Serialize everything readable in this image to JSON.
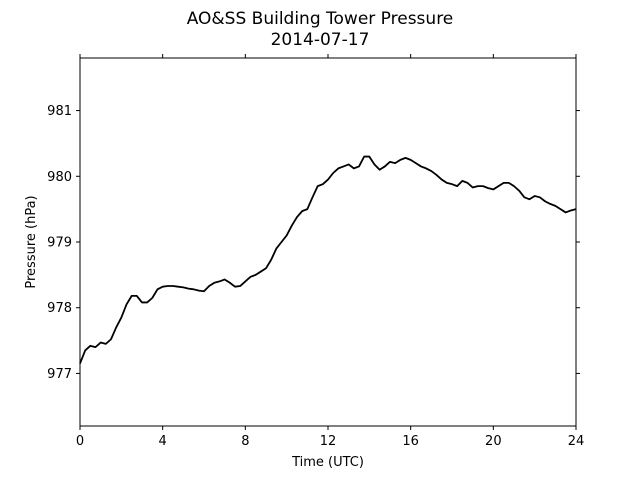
{
  "chart_data": {
    "type": "line",
    "title": "AO&SS Building Tower Pressure",
    "subtitle": "2014-07-17",
    "xlabel": "Time (UTC)",
    "ylabel": "Pressure (hPa)",
    "xlim": [
      0,
      24
    ],
    "ylim": [
      976.2,
      981.8
    ],
    "xticks": [
      0,
      4,
      8,
      12,
      16,
      20,
      24
    ],
    "yticks": [
      977,
      978,
      979,
      980,
      981
    ],
    "grid": false,
    "line_color": "#000000",
    "series": [
      {
        "x": [
          0.0,
          0.25,
          0.5,
          0.75,
          1.0,
          1.25,
          1.5,
          1.75,
          2.0,
          2.25,
          2.5,
          2.75,
          3.0,
          3.25,
          3.5,
          3.75,
          4.0,
          4.25,
          4.5,
          4.75,
          5.0,
          5.25,
          5.5,
          5.75,
          6.0,
          6.25,
          6.5,
          6.75,
          7.0,
          7.25,
          7.5,
          7.75,
          8.0,
          8.25,
          8.5,
          8.75,
          9.0,
          9.25,
          9.5,
          9.75,
          10.0,
          10.25,
          10.5,
          10.75,
          11.0,
          11.25,
          11.5,
          11.75,
          12.0,
          12.25,
          12.5,
          12.75,
          13.0,
          13.25,
          13.5,
          13.75,
          14.0,
          14.25,
          14.5,
          14.75,
          15.0,
          15.25,
          15.5,
          15.75,
          16.0,
          16.25,
          16.5,
          16.75,
          17.0,
          17.25,
          17.5,
          17.75,
          18.0,
          18.25,
          18.5,
          18.75,
          19.0,
          19.25,
          19.5,
          19.75,
          20.0,
          20.25,
          20.5,
          20.75,
          21.0,
          21.25,
          21.5,
          21.75,
          22.0,
          22.25,
          22.5,
          22.75,
          23.0,
          23.25,
          23.5,
          23.75,
          24.0
        ],
        "y": [
          977.15,
          977.35,
          977.42,
          977.4,
          977.47,
          977.45,
          977.52,
          977.7,
          977.85,
          978.05,
          978.18,
          978.18,
          978.08,
          978.08,
          978.15,
          978.28,
          978.32,
          978.33,
          978.33,
          978.32,
          978.31,
          978.29,
          978.28,
          978.26,
          978.25,
          978.33,
          978.38,
          978.4,
          978.43,
          978.38,
          978.32,
          978.33,
          978.4,
          978.47,
          978.5,
          978.55,
          978.6,
          978.73,
          978.9,
          979.0,
          979.1,
          979.25,
          979.38,
          979.47,
          979.5,
          979.68,
          979.85,
          979.88,
          979.95,
          980.05,
          980.12,
          980.15,
          980.18,
          980.12,
          980.15,
          980.3,
          980.3,
          980.18,
          980.1,
          980.15,
          980.22,
          980.2,
          980.25,
          980.28,
          980.25,
          980.2,
          980.15,
          980.12,
          980.08,
          980.02,
          979.95,
          979.9,
          979.88,
          979.85,
          979.93,
          979.9,
          979.83,
          979.85,
          979.85,
          979.82,
          979.8,
          979.85,
          979.9,
          979.9,
          979.85,
          979.78,
          979.68,
          979.65,
          979.7,
          979.68,
          979.62,
          979.58,
          979.55,
          979.5,
          979.45,
          979.48,
          979.5
        ]
      }
    ]
  }
}
